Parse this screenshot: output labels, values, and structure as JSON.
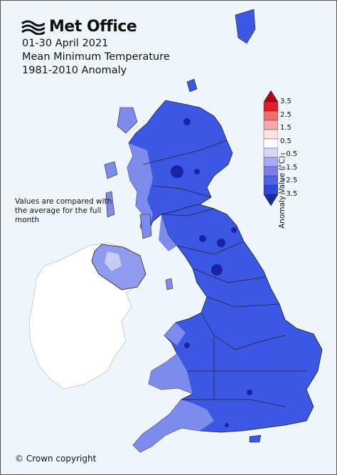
{
  "brand": {
    "name": "Met Office",
    "logo_icon": "met-office-waves-logo"
  },
  "title": {
    "line1": "01-30 April 2021",
    "line2": "Mean Minimum Temperature",
    "line3": "1981-2010 Anomaly"
  },
  "note": "Values are compared with the average for the full month",
  "copyright": "© Crown copyright",
  "legend": {
    "axis_label": "Anomaly Value (°C)",
    "ticks": [
      "3.5",
      "2.5",
      "1.5",
      "0.5",
      "−0.5",
      "−1.5",
      "−2.5",
      "−3.5"
    ],
    "colors": [
      "#b3001b",
      "#e21f26",
      "#f56a6a",
      "#f7a8a8",
      "#fce3e3",
      "#ffffff",
      "#d6d6fb",
      "#a9a9f3",
      "#7d7ded",
      "#4f63e6",
      "#2e46e2",
      "#1b2aa0"
    ]
  },
  "map_colors": {
    "sea": "#eef6fb",
    "ireland": "#ffffff",
    "main_anomaly": "#3b57e4",
    "mild_anomaly": "#7d8cec",
    "light_anomaly": "#a8b3f2",
    "deep_anomaly": "#1a22a8",
    "boundaries": "#222222"
  }
}
